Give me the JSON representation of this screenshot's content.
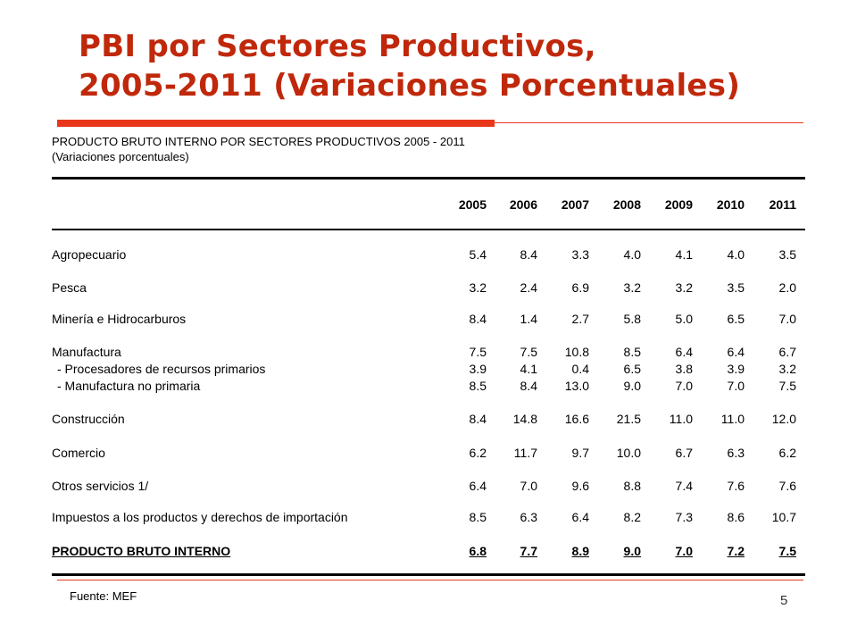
{
  "slide": {
    "title_line1": "PBI por Sectores Productivos,",
    "title_line2": "2005-2011  (Variaciones Porcentuales)",
    "page_number": "5",
    "source": "Fuente: MEF",
    "accent_color": "#e8371b",
    "title_color": "#c0280b"
  },
  "table": {
    "title": "PRODUCTO BRUTO INTERNO POR SECTORES PRODUCTIVOS 2005 - 2011",
    "subtitle": "(Variaciones porcentuales)",
    "years": [
      "2005",
      "2006",
      "2007",
      "2008",
      "2009",
      "2010",
      "2011"
    ],
    "rows": [
      {
        "label": "Agropecuario",
        "values": [
          "5.4",
          "8.4",
          "3.3",
          "4.0",
          "4.1",
          "4.0",
          "3.5"
        ]
      },
      {
        "label": "Pesca",
        "values": [
          "3.2",
          "2.4",
          "6.9",
          "3.2",
          "3.2",
          "3.5",
          "2.0"
        ]
      },
      {
        "label": "Minería e Hidrocarburos",
        "values": [
          "8.4",
          "1.4",
          "2.7",
          "5.8",
          "5.0",
          "6.5",
          "7.0"
        ]
      },
      {
        "label": "Manufactura",
        "values": [
          "7.5",
          "7.5",
          "10.8",
          "8.5",
          "6.4",
          "6.4",
          "6.7"
        ]
      },
      {
        "label": "- Procesadores de recursos primarios",
        "values": [
          "3.9",
          "4.1",
          "0.4",
          "6.5",
          "3.8",
          "3.9",
          "3.2"
        ]
      },
      {
        "label": "- Manufactura no primaria",
        "values": [
          "8.5",
          "8.4",
          "13.0",
          "9.0",
          "7.0",
          "7.0",
          "7.5"
        ]
      },
      {
        "label": "Construcción",
        "values": [
          "8.4",
          "14.8",
          "16.6",
          "21.5",
          "11.0",
          "11.0",
          "12.0"
        ]
      },
      {
        "label": "Comercio",
        "values": [
          "6.2",
          "11.7",
          "9.7",
          "10.0",
          "6.7",
          "6.3",
          "6.2"
        ]
      },
      {
        "label": "Otros servicios 1/",
        "values": [
          "6.4",
          "7.0",
          "9.6",
          "8.8",
          "7.4",
          "7.6",
          "7.6"
        ]
      },
      {
        "label": "Impuestos a los productos y derechos de importación",
        "values": [
          "8.5",
          "6.3",
          "6.4",
          "8.2",
          "7.3",
          "8.6",
          "10.7"
        ]
      },
      {
        "label": "PRODUCTO BRUTO INTERNO",
        "values": [
          "6.8",
          "7.7",
          "8.9",
          "9.0",
          "7.0",
          "7.2",
          "7.5"
        ]
      }
    ]
  }
}
